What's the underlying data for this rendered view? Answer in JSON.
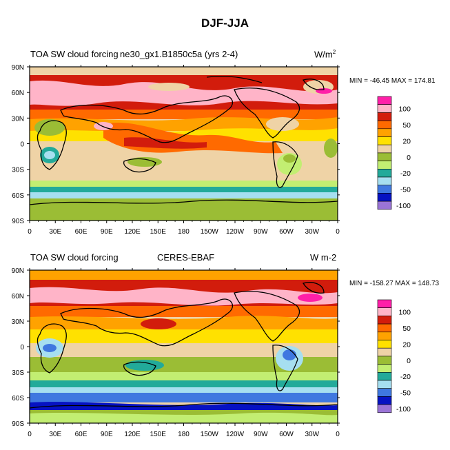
{
  "figure_title": "DJF-JJA",
  "chart_data": [
    {
      "type": "heatmap",
      "variable": "TOA SW cloud forcing",
      "case_label": "ne30_gx1.B1850c5a (yrs 2-4)",
      "units_base": "W/m",
      "units_sup": "2",
      "stats_text": "MIN = -46.45 MAX = 174.81",
      "min": -46.45,
      "max": 174.81,
      "x_ticks": [
        "0",
        "30E",
        "60E",
        "90E",
        "120E",
        "150E",
        "180",
        "150W",
        "120W",
        "90W",
        "60W",
        "30W",
        "0"
      ],
      "y_ticks": [
        "90N",
        "60N",
        "30N",
        "0",
        "30S",
        "60S",
        "90S"
      ],
      "colorbar_labels": [
        "100",
        "50",
        "20",
        "0",
        "-20",
        "-50",
        "-100"
      ]
    },
    {
      "type": "heatmap",
      "variable": "TOA SW cloud forcing",
      "case_label": "CERES-EBAF",
      "units": "W m-2",
      "stats_text": "MIN = -158.27 MAX = 148.73",
      "min": -158.27,
      "max": 148.73,
      "x_ticks": [
        "0",
        "30E",
        "60E",
        "90E",
        "120E",
        "150E",
        "180",
        "150W",
        "120W",
        "90W",
        "60W",
        "30W",
        "0"
      ],
      "y_ticks": [
        "90N",
        "60N",
        "30N",
        "0",
        "30S",
        "60S",
        "90S"
      ],
      "colorbar_labels": [
        "100",
        "50",
        "20",
        "0",
        "-20",
        "-50",
        "-100"
      ]
    }
  ],
  "colorbar_colors": [
    "#ff1fa8",
    "#ffb4c8",
    "#d21c0c",
    "#ff6a00",
    "#ffa200",
    "#ffe100",
    "#efd3a6",
    "#9bbd35",
    "#c2ee72",
    "#22aa9a",
    "#a6dff0",
    "#3f78e0",
    "#0612c2",
    "#9a74d6"
  ]
}
